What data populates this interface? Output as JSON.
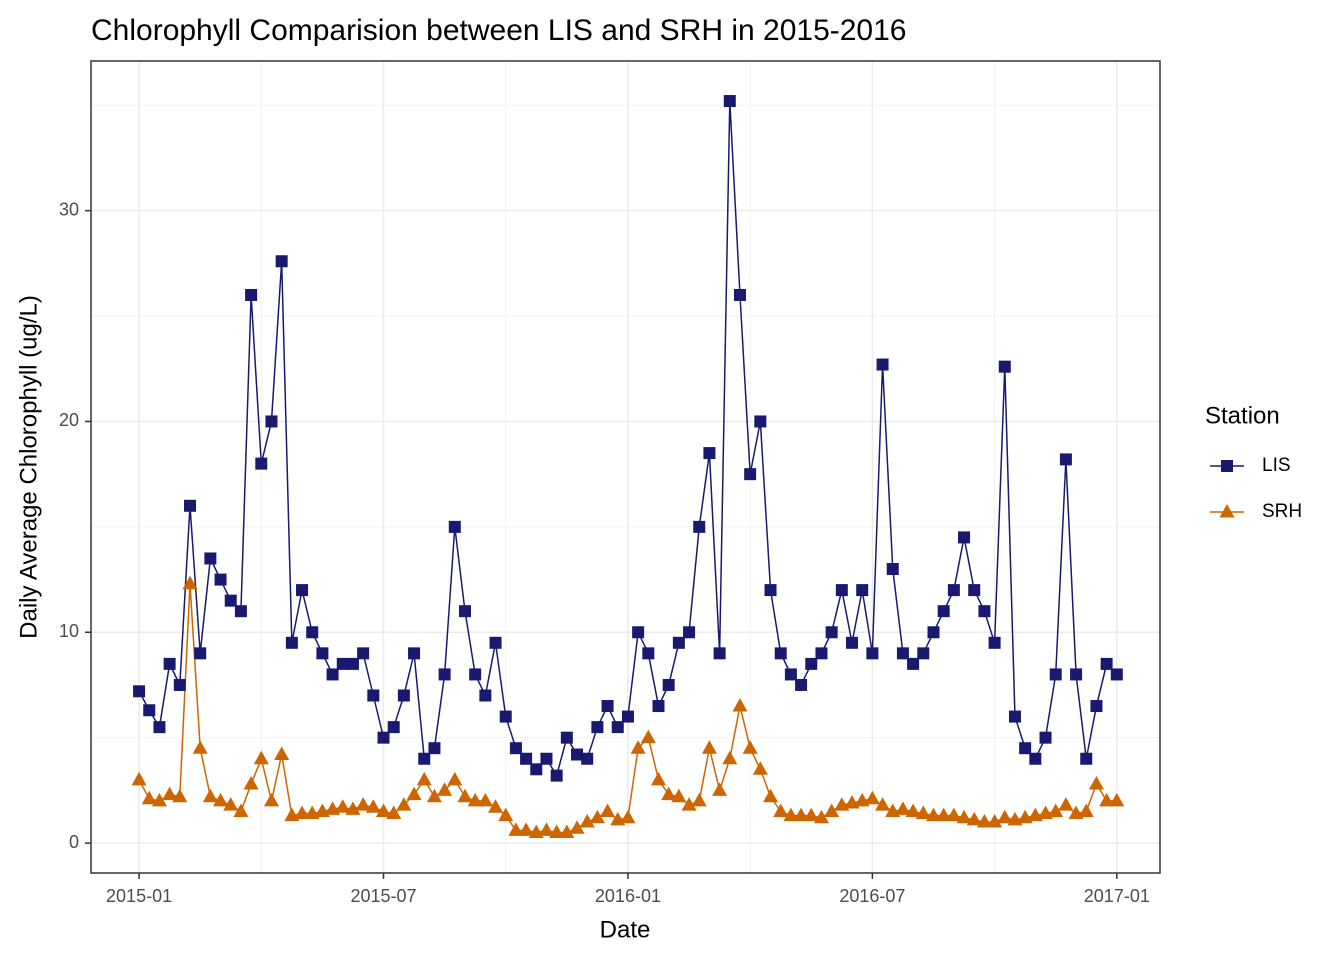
{
  "chart_data": {
    "type": "line",
    "title": "Chlorophyll Comparision between LIS and SRH in 2015-2016",
    "x_label": "Date",
    "y_label": "Daily Average Chlorophyll (ug/L)",
    "legend_title": "Station",
    "legend": "right",
    "grid": true,
    "x": [
      0,
      0.25,
      0.5,
      0.75,
      1,
      1.25,
      1.5,
      1.75,
      2,
      2.25,
      2.5,
      2.75,
      3,
      3.25,
      3.5,
      3.75,
      4,
      4.25,
      4.5,
      4.75,
      5,
      5.25,
      5.5,
      5.75,
      6,
      6.25,
      6.5,
      6.75,
      7,
      7.25,
      7.5,
      7.75,
      8,
      8.25,
      8.5,
      8.75,
      9,
      9.25,
      9.5,
      9.75,
      10,
      10.25,
      10.5,
      10.75,
      11,
      11.25,
      11.5,
      11.75,
      12,
      12.25,
      12.5,
      12.75,
      13,
      13.25,
      13.5,
      13.75,
      14,
      14.25,
      14.5,
      14.75,
      15,
      15.25,
      15.5,
      15.75,
      16,
      16.25,
      16.5,
      16.75,
      17,
      17.25,
      17.5,
      17.75,
      18,
      18.25,
      18.5,
      18.75,
      19,
      19.25,
      19.5,
      19.75,
      20,
      20.25,
      20.5,
      20.75,
      21,
      21.25,
      21.5,
      21.75,
      22,
      22.25,
      22.5,
      22.75,
      23,
      23.25,
      23.5,
      23.75,
      24
    ],
    "xlim": [
      -1.18,
      25.06
    ],
    "xticks": [
      {
        "value": 0,
        "label": "2015-01"
      },
      {
        "value": 6,
        "label": "2015-07"
      },
      {
        "value": 12,
        "label": "2016-01"
      },
      {
        "value": 18,
        "label": "2016-07"
      },
      {
        "value": 24,
        "label": "2017-01"
      }
    ],
    "ylim": [
      -1.42,
      37.1
    ],
    "yticks": [
      0,
      10,
      20,
      30
    ],
    "series": [
      {
        "name": "LIS",
        "color": "#191970",
        "marker": "square",
        "values": [
          7.2,
          6.3,
          5.5,
          8.5,
          7.5,
          16.0,
          9.0,
          13.5,
          12.5,
          11.5,
          11.0,
          26.0,
          18.0,
          20.0,
          27.6,
          9.5,
          12.0,
          10.0,
          9.0,
          8.0,
          8.5,
          8.5,
          9.0,
          7.0,
          5.0,
          5.5,
          7.0,
          9.0,
          4.0,
          4.5,
          8.0,
          15.0,
          11.0,
          8.0,
          7.0,
          9.5,
          6.0,
          4.5,
          4.0,
          3.5,
          4.0,
          3.2,
          5.0,
          4.2,
          4.0,
          5.5,
          6.5,
          5.5,
          6.0,
          10.0,
          9.0,
          6.5,
          7.5,
          9.5,
          10.0,
          15.0,
          18.5,
          9.0,
          35.2,
          26.0,
          17.5,
          20.0,
          12.0,
          9.0,
          8.0,
          7.5,
          8.5,
          9.0,
          10.0,
          12.0,
          9.5,
          12.0,
          9.0,
          22.7,
          13.0,
          9.0,
          8.5,
          9.0,
          10.0,
          11.0,
          12.0,
          14.5,
          12.0,
          11.0,
          9.5,
          22.6,
          6.0,
          4.5,
          4.0,
          5.0,
          8.0,
          18.2,
          8.0,
          4.0,
          6.5,
          8.5,
          8.0
        ]
      },
      {
        "name": "SRH",
        "color": "#cd6600",
        "marker": "triangle",
        "values": [
          3.0,
          2.1,
          2.0,
          2.3,
          2.2,
          12.3,
          4.5,
          2.2,
          2.0,
          1.8,
          1.5,
          2.8,
          4.0,
          2.0,
          4.2,
          1.3,
          1.4,
          1.4,
          1.5,
          1.6,
          1.7,
          1.6,
          1.8,
          1.7,
          1.5,
          1.4,
          1.8,
          2.3,
          3.0,
          2.2,
          2.5,
          3.0,
          2.2,
          2.0,
          2.0,
          1.7,
          1.3,
          0.6,
          0.6,
          0.5,
          0.6,
          0.5,
          0.5,
          0.7,
          1.0,
          1.2,
          1.5,
          1.1,
          1.2,
          4.5,
          5.0,
          3.0,
          2.3,
          2.2,
          1.8,
          2.0,
          4.5,
          2.5,
          4.0,
          6.5,
          4.5,
          3.5,
          2.2,
          1.5,
          1.3,
          1.3,
          1.3,
          1.2,
          1.5,
          1.8,
          1.9,
          2.0,
          2.1,
          1.8,
          1.5,
          1.6,
          1.5,
          1.4,
          1.3,
          1.3,
          1.3,
          1.2,
          1.1,
          1.0,
          1.0,
          1.2,
          1.1,
          1.2,
          1.3,
          1.4,
          1.5,
          1.8,
          1.4,
          1.5,
          2.8,
          2.0,
          2.0
        ]
      }
    ]
  }
}
